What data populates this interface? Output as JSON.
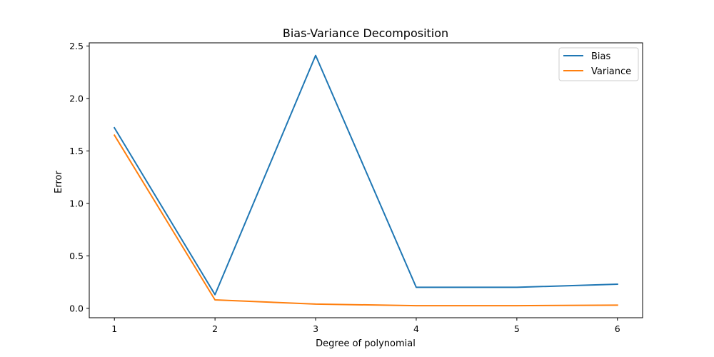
{
  "chart_data": {
    "type": "line",
    "title": "Bias-Variance Decomposition",
    "xlabel": "Degree of polynomial",
    "ylabel": "Error",
    "x": [
      1,
      2,
      3,
      4,
      5,
      6
    ],
    "xticks": [
      "1",
      "2",
      "3",
      "4",
      "5",
      "6"
    ],
    "yticks": [
      "0.0",
      "0.5",
      "1.0",
      "1.5",
      "2.0",
      "2.5"
    ],
    "ytick_values": [
      0.0,
      0.5,
      1.0,
      1.5,
      2.0,
      2.5
    ],
    "xlim": [
      0.75,
      6.25
    ],
    "ylim": [
      -0.09,
      2.53
    ],
    "grid": false,
    "legend_position": "top-right",
    "series": [
      {
        "name": "Bias",
        "color": "#1f77b4",
        "values": [
          1.72,
          0.13,
          2.41,
          0.2,
          0.2,
          0.23
        ]
      },
      {
        "name": "Variance",
        "color": "#ff7f0e",
        "values": [
          1.65,
          0.08,
          0.04,
          0.025,
          0.025,
          0.03
        ]
      }
    ]
  }
}
